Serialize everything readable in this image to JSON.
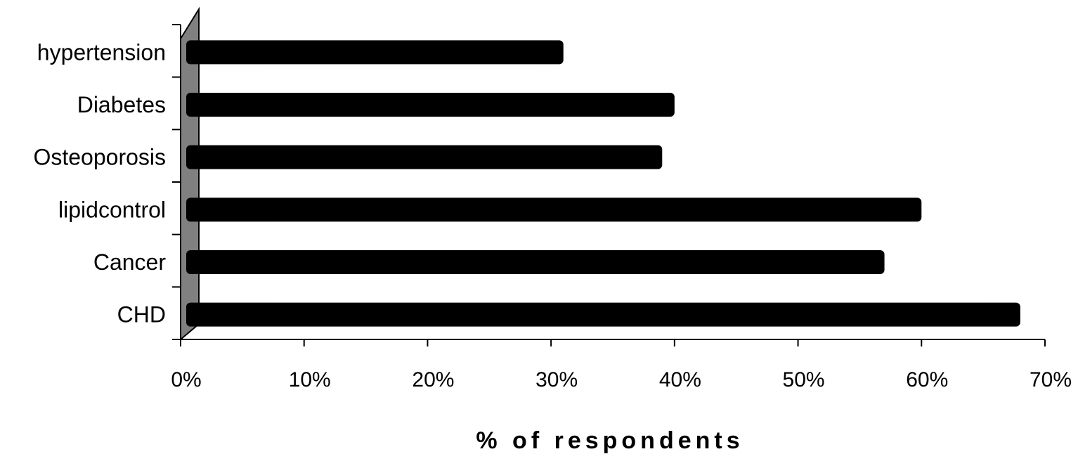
{
  "chart_data": {
    "type": "bar",
    "orientation": "horizontal",
    "categories": [
      "hypertension",
      "Diabetes",
      "Osteoporosis",
      "lipidcontrol",
      "Cancer",
      "CHD"
    ],
    "values": [
      31,
      40,
      39,
      60,
      57,
      68
    ],
    "xlabel": "% of respondents",
    "ylabel": "",
    "xlim": [
      0,
      70
    ],
    "xticks": [
      0,
      10,
      20,
      30,
      40,
      50,
      60,
      70
    ],
    "xtick_labels": [
      "0%",
      "10%",
      "20%",
      "30%",
      "40%",
      "50%",
      "60%",
      "70%"
    ],
    "bar_color": "#000000",
    "wall_color": "#808080",
    "grid": false,
    "legend": "none"
  }
}
